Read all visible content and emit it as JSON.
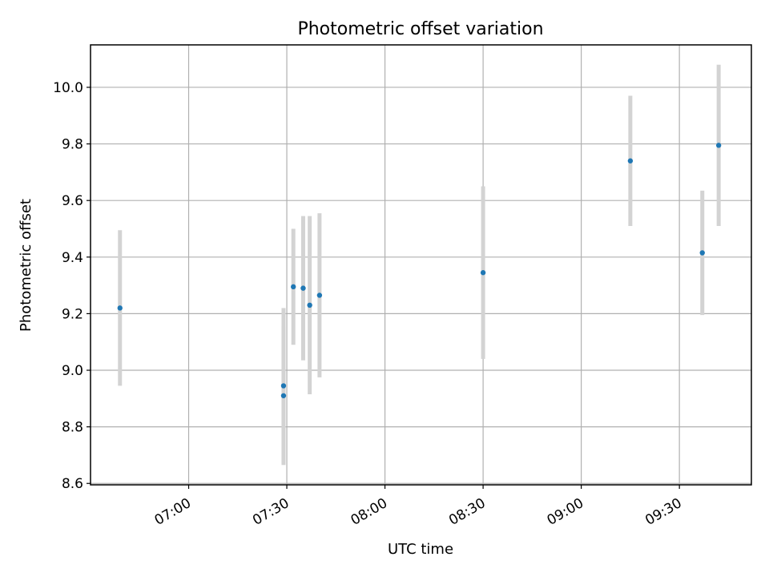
{
  "chart_data": {
    "type": "scatter",
    "title": "Photometric offset variation",
    "xlabel": "UTC time",
    "ylabel": "Photometric offset",
    "grid": true,
    "x_ticks": [
      "07:00",
      "07:30",
      "08:00",
      "08:30",
      "09:00",
      "09:30"
    ],
    "y_ticks": [
      "8.6",
      "8.8",
      "9.0",
      "9.2",
      "9.4",
      "9.6",
      "9.8",
      "10.0"
    ],
    "xlim": [
      "06:30",
      "09:52"
    ],
    "ylim": [
      8.595,
      10.15
    ],
    "colors": {
      "point": "#1f77b4",
      "errorbar": "#d3d3d3",
      "grid": "#b0b0b0"
    },
    "points": [
      {
        "x": "06:39",
        "y": 9.22,
        "yerr": 0.275
      },
      {
        "x": "07:29",
        "y": 8.91,
        "yerr": 0.245
      },
      {
        "x": "07:29",
        "y": 8.945,
        "yerr": 0.275
      },
      {
        "x": "07:32",
        "y": 9.295,
        "yerr": 0.205
      },
      {
        "x": "07:35",
        "y": 9.29,
        "yerr": 0.255
      },
      {
        "x": "07:37",
        "y": 9.23,
        "yerr": 0.315
      },
      {
        "x": "07:40",
        "y": 9.265,
        "yerr": 0.29
      },
      {
        "x": "08:30",
        "y": 9.345,
        "yerr": 0.305
      },
      {
        "x": "09:15",
        "y": 9.74,
        "yerr": 0.23
      },
      {
        "x": "09:37",
        "y": 9.415,
        "yerr": 0.22
      },
      {
        "x": "09:42",
        "y": 9.795,
        "yerr": 0.285
      }
    ]
  }
}
